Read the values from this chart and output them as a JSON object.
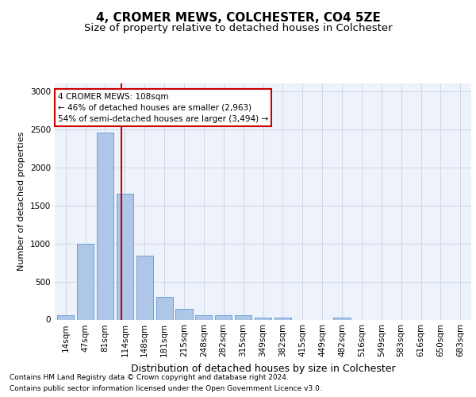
{
  "title1": "4, CROMER MEWS, COLCHESTER, CO4 5ZE",
  "title2": "Size of property relative to detached houses in Colchester",
  "xlabel": "Distribution of detached houses by size in Colchester",
  "ylabel": "Number of detached properties",
  "categories": [
    "14sqm",
    "47sqm",
    "81sqm",
    "114sqm",
    "148sqm",
    "181sqm",
    "215sqm",
    "248sqm",
    "282sqm",
    "315sqm",
    "349sqm",
    "382sqm",
    "415sqm",
    "449sqm",
    "482sqm",
    "516sqm",
    "549sqm",
    "583sqm",
    "616sqm",
    "650sqm",
    "683sqm"
  ],
  "values": [
    60,
    1000,
    2450,
    1650,
    840,
    300,
    145,
    55,
    60,
    55,
    30,
    25,
    0,
    0,
    30,
    0,
    0,
    0,
    0,
    0,
    0
  ],
  "bar_color": "#aec6e8",
  "bar_edgecolor": "#5b9bd5",
  "grid_color": "#d0d8e8",
  "background_color": "#eef2fa",
  "vline_x": 2.82,
  "vline_color": "#cc0000",
  "annotation_text": "4 CROMER MEWS: 108sqm\n← 46% of detached houses are smaller (2,963)\n54% of semi-detached houses are larger (3,494) →",
  "annotation_box_color": "#ffffff",
  "annotation_box_edgecolor": "#cc0000",
  "footnote1": "Contains HM Land Registry data © Crown copyright and database right 2024.",
  "footnote2": "Contains public sector information licensed under the Open Government Licence v3.0.",
  "ylim": [
    0,
    3100
  ],
  "title1_fontsize": 11,
  "title2_fontsize": 9.5,
  "xlabel_fontsize": 9,
  "ylabel_fontsize": 8,
  "tick_fontsize": 7.5,
  "annotation_fontsize": 7.5
}
